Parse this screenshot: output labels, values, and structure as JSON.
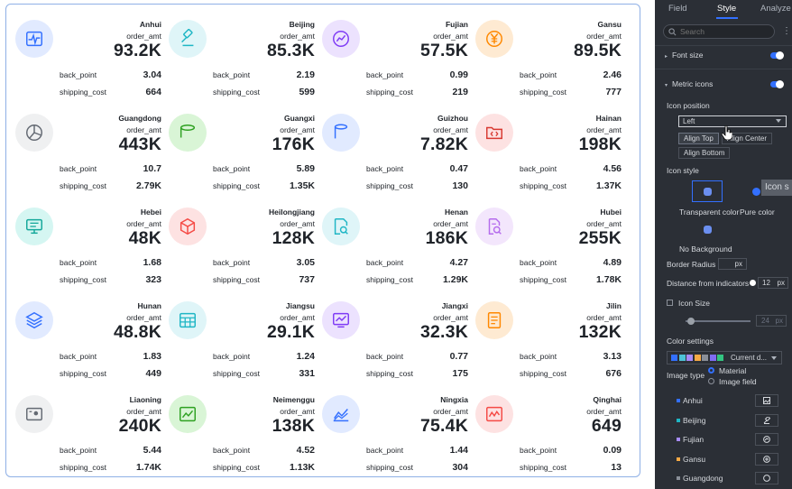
{
  "cards": [
    {
      "province": "Anhui",
      "metric_label": "order_amt",
      "value": "93.2K",
      "back_point_label": "back_point",
      "back_point": "3.04",
      "shipping_label": "shipping_cost",
      "shipping_cost": "664",
      "icon": "pulse-icon",
      "icon_color": "#3370ff",
      "icon_bg": "#e1eaff"
    },
    {
      "province": "Beijing",
      "metric_label": "order_amt",
      "value": "85.3K",
      "back_point_label": "back_point",
      "back_point": "2.19",
      "shipping_label": "shipping_cost",
      "shipping_cost": "599",
      "icon": "gavel-icon",
      "icon_color": "#1fb6c5",
      "icon_bg": "#dff5f8"
    },
    {
      "province": "Fujian",
      "metric_label": "order_amt",
      "value": "57.5K",
      "back_point_label": "back_point",
      "back_point": "0.99",
      "shipping_label": "shipping_cost",
      "shipping_cost": "219",
      "icon": "trend-circle-icon",
      "icon_color": "#7f3bf5",
      "icon_bg": "#ece2fe"
    },
    {
      "province": "Gansu",
      "metric_label": "order_amt",
      "value": "89.5K",
      "back_point_label": "back_point",
      "back_point": "2.46",
      "shipping_label": "shipping_cost",
      "shipping_cost": "777",
      "icon": "yuan-icon",
      "icon_color": "#ff8800",
      "icon_bg": "#feead2"
    },
    {
      "province": "Guangdong",
      "metric_label": "order_amt",
      "value": "443K",
      "back_point_label": "back_point",
      "back_point": "10.7",
      "shipping_label": "shipping_cost",
      "shipping_cost": "2.79K",
      "icon": "pie-icon",
      "icon_color": "#646a73",
      "icon_bg": "#eff0f1"
    },
    {
      "province": "Guangxi",
      "metric_label": "order_amt",
      "value": "176K",
      "back_point_label": "back_point",
      "back_point": "5.89",
      "shipping_label": "shipping_cost",
      "shipping_cost": "1.35K",
      "icon": "cylinder-icon",
      "icon_color": "#2ea121",
      "icon_bg": "#d9f5d6"
    },
    {
      "province": "Guizhou",
      "metric_label": "order_amt",
      "value": "7.82K",
      "back_point_label": "back_point",
      "back_point": "0.47",
      "shipping_label": "shipping_cost",
      "shipping_cost": "130",
      "icon": "database-icon",
      "icon_color": "#3370ff",
      "icon_bg": "#e1eaff"
    },
    {
      "province": "Hainan",
      "metric_label": "order_amt",
      "value": "198K",
      "back_point_label": "back_point",
      "back_point": "4.56",
      "shipping_label": "shipping_cost",
      "shipping_cost": "1.37K",
      "icon": "code-folder-icon",
      "icon_color": "#d83931",
      "icon_bg": "#fde2e2"
    },
    {
      "province": "Hebei",
      "metric_label": "order_amt",
      "value": "48K",
      "back_point_label": "back_point",
      "back_point": "1.68",
      "shipping_label": "shipping_cost",
      "shipping_cost": "323",
      "icon": "monitor-icon",
      "icon_color": "#14a79a",
      "icon_bg": "#d5f6f2"
    },
    {
      "province": "Heilongjiang",
      "metric_label": "order_amt",
      "value": "128K",
      "back_point_label": "back_point",
      "back_point": "3.05",
      "shipping_label": "shipping_cost",
      "shipping_cost": "737",
      "icon": "cube-icon",
      "icon_color": "#f54a45",
      "icon_bg": "#fde2e2"
    },
    {
      "province": "Henan",
      "metric_label": "order_amt",
      "value": "186K",
      "back_point_label": "back_point",
      "back_point": "4.27",
      "shipping_label": "shipping_cost",
      "shipping_cost": "1.29K",
      "icon": "doc-search-icon",
      "icon_color": "#1fb6c5",
      "icon_bg": "#dff5f8"
    },
    {
      "province": "Hubei",
      "metric_label": "order_amt",
      "value": "255K",
      "back_point_label": "back_point",
      "back_point": "4.89",
      "shipping_label": "shipping_cost",
      "shipping_cost": "1.78K",
      "icon": "file-search-icon",
      "icon_color": "#b56ced",
      "icon_bg": "#f3e6fc"
    },
    {
      "province": "Hunan",
      "metric_label": "order_amt",
      "value": "48.8K",
      "back_point_label": "back_point",
      "back_point": "1.83",
      "shipping_label": "shipping_cost",
      "shipping_cost": "449",
      "icon": "layers-icon",
      "icon_color": "#3370ff",
      "icon_bg": "#e1eaff"
    },
    {
      "province": "Jiangsu",
      "metric_label": "order_amt",
      "value": "29.1K",
      "back_point_label": "back_point",
      "back_point": "1.24",
      "shipping_label": "shipping_cost",
      "shipping_cost": "331",
      "icon": "table-icon",
      "icon_color": "#1fb6c5",
      "icon_bg": "#dff5f8"
    },
    {
      "province": "Jiangxi",
      "metric_label": "order_amt",
      "value": "32.3K",
      "back_point_label": "back_point",
      "back_point": "0.77",
      "shipping_label": "shipping_cost",
      "shipping_cost": "175",
      "icon": "chart-screen-icon",
      "icon_color": "#7f3bf5",
      "icon_bg": "#ece2fe"
    },
    {
      "province": "Jilin",
      "metric_label": "order_amt",
      "value": "132K",
      "back_point_label": "back_point",
      "back_point": "3.13",
      "shipping_label": "shipping_cost",
      "shipping_cost": "676",
      "icon": "notes-icon",
      "icon_color": "#ff8800",
      "icon_bg": "#feead2"
    },
    {
      "province": "Liaoning",
      "metric_label": "order_amt",
      "value": "240K",
      "back_point_label": "back_point",
      "back_point": "5.44",
      "shipping_label": "shipping_cost",
      "shipping_cost": "1.74K",
      "icon": "id-card-icon",
      "icon_color": "#646a73",
      "icon_bg": "#eff0f1"
    },
    {
      "province": "Neimenggu",
      "metric_label": "order_amt",
      "value": "138K",
      "back_point_label": "back_point",
      "back_point": "4.52",
      "shipping_label": "shipping_cost",
      "shipping_cost": "1.13K",
      "icon": "line-chart-icon",
      "icon_color": "#2ea121",
      "icon_bg": "#d9f5d6"
    },
    {
      "province": "Ningxia",
      "metric_label": "order_amt",
      "value": "75.4K",
      "back_point_label": "back_point",
      "back_point": "1.44",
      "shipping_label": "shipping_cost",
      "shipping_cost": "304",
      "icon": "area-chart-icon",
      "icon_color": "#3370ff",
      "icon_bg": "#e1eaff"
    },
    {
      "province": "Qinghai",
      "metric_label": "order_amt",
      "value": "649",
      "back_point_label": "back_point",
      "back_point": "0.09",
      "shipping_label": "shipping_cost",
      "shipping_cost": "13",
      "icon": "trend-box-icon",
      "icon_color": "#f54a45",
      "icon_bg": "#fde2e2"
    }
  ],
  "panel": {
    "tabs": [
      "Field",
      "Style",
      "Analyze"
    ],
    "active_tab": "Style",
    "search_placeholder": "Search",
    "font_size": {
      "label": "Font size",
      "enabled": true
    },
    "metric_icons": {
      "label": "Metric icons",
      "enabled": true
    },
    "icon_position": {
      "label": "Icon position",
      "selected": "Left",
      "options": [
        "Align Top",
        "Align Center",
        "Align Bottom"
      ]
    },
    "icon_style": {
      "label": "Icon style",
      "options": [
        "Transparent color",
        "Pure color"
      ],
      "no_bg": "No Background",
      "tooltip": "Icon s"
    },
    "border_radius": {
      "label": "Border Radius",
      "unit": "px",
      "value": ""
    },
    "distance": {
      "label": "Distance from indicators",
      "value": "12",
      "unit": "px"
    },
    "icon_size": {
      "label": "Icon Size",
      "value": "24",
      "unit": "px"
    },
    "color_settings": {
      "label": "Color settings",
      "palette_label": "Current d...",
      "swatches": [
        "#3370ff",
        "#4ec3d6",
        "#a78bfa",
        "#f6a945",
        "#8a8f98",
        "#7f6df2",
        "#33c481"
      ]
    },
    "image_type": {
      "label": "Image type",
      "options": [
        "Material",
        "Image field"
      ],
      "selected": "Material"
    },
    "items": [
      {
        "name": "Anhui",
        "color": "#3370ff"
      },
      {
        "name": "Beijing",
        "color": "#1fb6c5"
      },
      {
        "name": "Fujian",
        "color": "#a78bfa"
      },
      {
        "name": "Gansu",
        "color": "#f6a945"
      },
      {
        "name": "Guangdong",
        "color": "#8a8f98"
      }
    ]
  }
}
